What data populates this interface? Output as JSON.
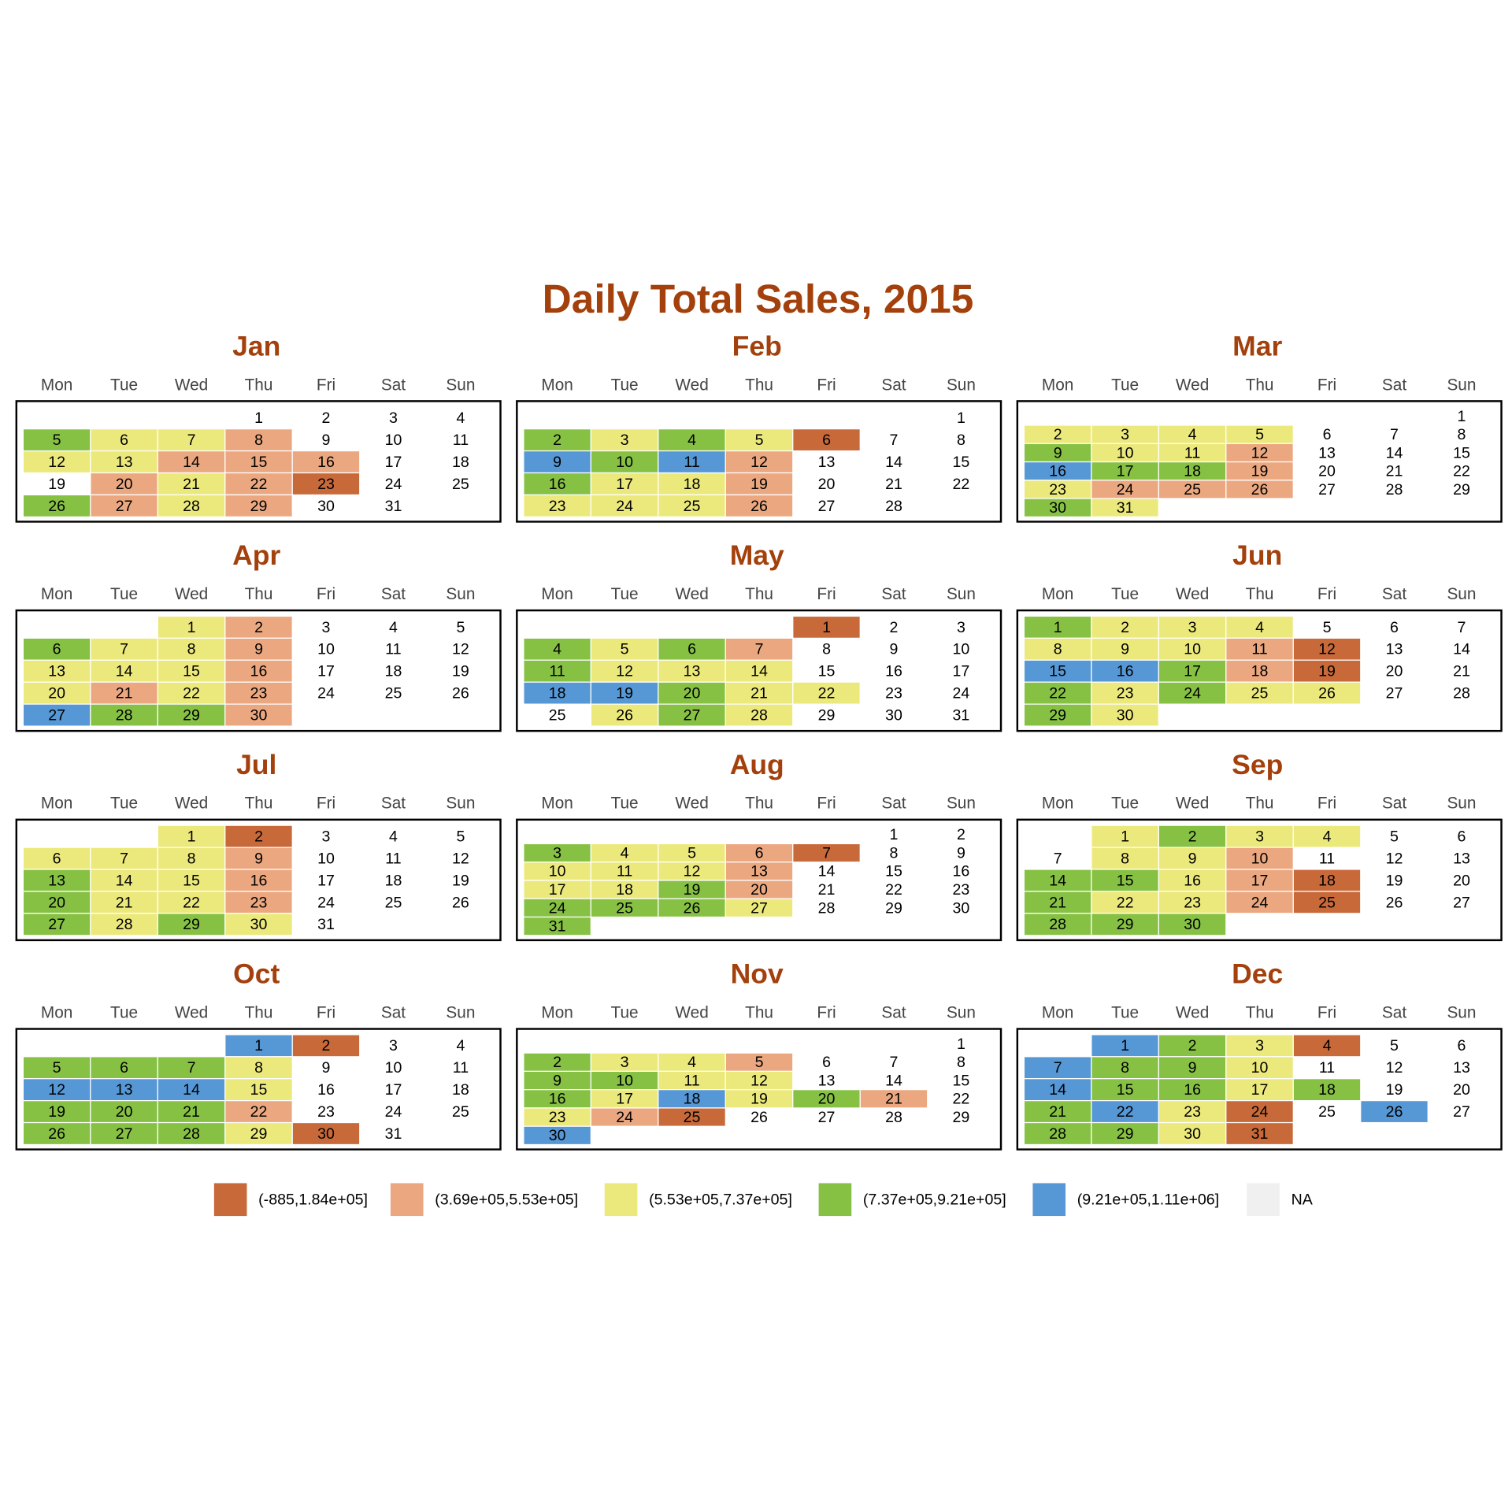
{
  "chart_data": {
    "type": "calendar_heatmap",
    "title": "Daily Total Sales, 2015",
    "weekdays": [
      "Mon",
      "Tue",
      "Wed",
      "Thu",
      "Fri",
      "Sat",
      "Sun"
    ],
    "legend": [
      {
        "label": "(-885,1.84e+05]",
        "color": "#c8693a"
      },
      {
        "label": "(3.69e+05,5.53e+05]",
        "color": "#eba880"
      },
      {
        "label": "(5.53e+05,7.37e+05]",
        "color": "#ece97c"
      },
      {
        "label": "(7.37e+05,9.21e+05]",
        "color": "#86c144"
      },
      {
        "label": "(9.21e+05,1.11e+06]",
        "color": "#5697d5"
      },
      {
        "label": "NA",
        "color": "#f0f0f0"
      }
    ],
    "months": [
      {
        "name": "Jan",
        "days": [
          1,
          2,
          3,
          4,
          5,
          6,
          7,
          8,
          9,
          10,
          11,
          12,
          13,
          14,
          15,
          16,
          17,
          18,
          19,
          20,
          21,
          22,
          23,
          24,
          25,
          26,
          27,
          28,
          29,
          30,
          31
        ],
        "bins": [
          null,
          null,
          null,
          null,
          3,
          2,
          2,
          1,
          null,
          null,
          null,
          2,
          2,
          1,
          1,
          1,
          null,
          null,
          null,
          1,
          2,
          1,
          0,
          null,
          null,
          3,
          1,
          2,
          1,
          null,
          null
        ]
      },
      {
        "name": "Feb",
        "days": [
          1,
          2,
          3,
          4,
          5,
          6,
          7,
          8,
          9,
          10,
          11,
          12,
          13,
          14,
          15,
          16,
          17,
          18,
          19,
          20,
          21,
          22,
          23,
          24,
          25,
          26,
          27,
          28
        ],
        "bins": [
          null,
          3,
          2,
          3,
          2,
          0,
          null,
          null,
          4,
          3,
          4,
          1,
          null,
          null,
          null,
          3,
          2,
          2,
          1,
          null,
          null,
          null,
          2,
          2,
          2,
          1,
          null,
          null
        ]
      },
      {
        "name": "Mar",
        "days": [
          1,
          2,
          3,
          4,
          5,
          6,
          7,
          8,
          9,
          10,
          11,
          12,
          13,
          14,
          15,
          16,
          17,
          18,
          19,
          20,
          21,
          22,
          23,
          24,
          25,
          26,
          27,
          28,
          29,
          30,
          31
        ],
        "bins": [
          null,
          2,
          2,
          2,
          2,
          null,
          null,
          null,
          3,
          2,
          2,
          1,
          null,
          null,
          null,
          4,
          3,
          3,
          1,
          null,
          null,
          null,
          2,
          1,
          1,
          1,
          null,
          null,
          null,
          3,
          2
        ]
      },
      {
        "name": "Apr",
        "days": [
          1,
          2,
          3,
          4,
          5,
          6,
          7,
          8,
          9,
          10,
          11,
          12,
          13,
          14,
          15,
          16,
          17,
          18,
          19,
          20,
          21,
          22,
          23,
          24,
          25,
          26,
          27,
          28,
          29,
          30
        ],
        "bins": [
          2,
          1,
          null,
          null,
          null,
          3,
          2,
          2,
          1,
          null,
          null,
          null,
          2,
          2,
          2,
          1,
          null,
          null,
          null,
          2,
          1,
          2,
          1,
          null,
          null,
          null,
          4,
          3,
          3,
          1
        ]
      },
      {
        "name": "May",
        "days": [
          1,
          2,
          3,
          4,
          5,
          6,
          7,
          8,
          9,
          10,
          11,
          12,
          13,
          14,
          15,
          16,
          17,
          18,
          19,
          20,
          21,
          22,
          23,
          24,
          25,
          26,
          27,
          28,
          29,
          30,
          31
        ],
        "bins": [
          0,
          null,
          null,
          3,
          2,
          3,
          1,
          null,
          null,
          null,
          3,
          2,
          2,
          2,
          null,
          null,
          null,
          4,
          4,
          3,
          2,
          2,
          null,
          null,
          null,
          2,
          3,
          2,
          null,
          null,
          null
        ]
      },
      {
        "name": "Jun",
        "days": [
          1,
          2,
          3,
          4,
          5,
          6,
          7,
          8,
          9,
          10,
          11,
          12,
          13,
          14,
          15,
          16,
          17,
          18,
          19,
          20,
          21,
          22,
          23,
          24,
          25,
          26,
          27,
          28,
          29,
          30
        ],
        "bins": [
          3,
          2,
          2,
          2,
          null,
          null,
          null,
          2,
          2,
          2,
          1,
          0,
          null,
          null,
          4,
          4,
          3,
          1,
          0,
          null,
          null,
          3,
          2,
          3,
          2,
          2,
          null,
          null,
          3,
          2
        ]
      },
      {
        "name": "Jul",
        "days": [
          1,
          2,
          3,
          4,
          5,
          6,
          7,
          8,
          9,
          10,
          11,
          12,
          13,
          14,
          15,
          16,
          17,
          18,
          19,
          20,
          21,
          22,
          23,
          24,
          25,
          26,
          27,
          28,
          29,
          30,
          31
        ],
        "bins": [
          2,
          0,
          null,
          null,
          null,
          2,
          2,
          2,
          1,
          null,
          null,
          null,
          3,
          2,
          2,
          1,
          null,
          null,
          null,
          3,
          2,
          2,
          1,
          null,
          null,
          null,
          3,
          2,
          3,
          2,
          null
        ]
      },
      {
        "name": "Aug",
        "days": [
          1,
          2,
          3,
          4,
          5,
          6,
          7,
          8,
          9,
          10,
          11,
          12,
          13,
          14,
          15,
          16,
          17,
          18,
          19,
          20,
          21,
          22,
          23,
          24,
          25,
          26,
          27,
          28,
          29,
          30,
          31
        ],
        "bins": [
          null,
          null,
          3,
          2,
          2,
          1,
          0,
          null,
          null,
          2,
          2,
          2,
          1,
          null,
          null,
          null,
          2,
          2,
          3,
          1,
          null,
          null,
          null,
          3,
          3,
          3,
          2,
          null,
          null,
          null,
          3
        ]
      },
      {
        "name": "Sep",
        "days": [
          1,
          2,
          3,
          4,
          5,
          6,
          7,
          8,
          9,
          10,
          11,
          12,
          13,
          14,
          15,
          16,
          17,
          18,
          19,
          20,
          21,
          22,
          23,
          24,
          25,
          26,
          27,
          28,
          29,
          30
        ],
        "bins": [
          2,
          3,
          2,
          2,
          null,
          null,
          null,
          2,
          2,
          1,
          null,
          null,
          null,
          3,
          3,
          2,
          1,
          0,
          null,
          null,
          3,
          2,
          2,
          1,
          0,
          null,
          null,
          3,
          3,
          3
        ]
      },
      {
        "name": "Oct",
        "days": [
          1,
          2,
          3,
          4,
          5,
          6,
          7,
          8,
          9,
          10,
          11,
          12,
          13,
          14,
          15,
          16,
          17,
          18,
          19,
          20,
          21,
          22,
          23,
          24,
          25,
          26,
          27,
          28,
          29,
          30,
          31
        ],
        "bins": [
          4,
          0,
          null,
          null,
          3,
          3,
          3,
          2,
          null,
          null,
          null,
          4,
          4,
          4,
          2,
          null,
          null,
          null,
          3,
          3,
          3,
          1,
          null,
          null,
          null,
          3,
          3,
          3,
          2,
          0,
          null
        ]
      },
      {
        "name": "Nov",
        "days": [
          1,
          2,
          3,
          4,
          5,
          6,
          7,
          8,
          9,
          10,
          11,
          12,
          13,
          14,
          15,
          16,
          17,
          18,
          19,
          20,
          21,
          22,
          23,
          24,
          25,
          26,
          27,
          28,
          29,
          30
        ],
        "bins": [
          null,
          3,
          2,
          2,
          1,
          null,
          null,
          null,
          3,
          3,
          2,
          2,
          null,
          null,
          null,
          3,
          2,
          4,
          2,
          3,
          1,
          null,
          2,
          1,
          0,
          null,
          null,
          null,
          null,
          4
        ]
      },
      {
        "name": "Dec",
        "days": [
          1,
          2,
          3,
          4,
          5,
          6,
          7,
          8,
          9,
          10,
          11,
          12,
          13,
          14,
          15,
          16,
          17,
          18,
          19,
          20,
          21,
          22,
          23,
          24,
          25,
          26,
          27,
          28,
          29,
          30,
          31
        ],
        "bins": [
          4,
          3,
          2,
          0,
          null,
          null,
          4,
          3,
          3,
          2,
          null,
          null,
          null,
          4,
          3,
          3,
          2,
          3,
          null,
          null,
          3,
          4,
          2,
          0,
          null,
          4,
          null,
          3,
          3,
          2,
          0
        ]
      }
    ]
  }
}
